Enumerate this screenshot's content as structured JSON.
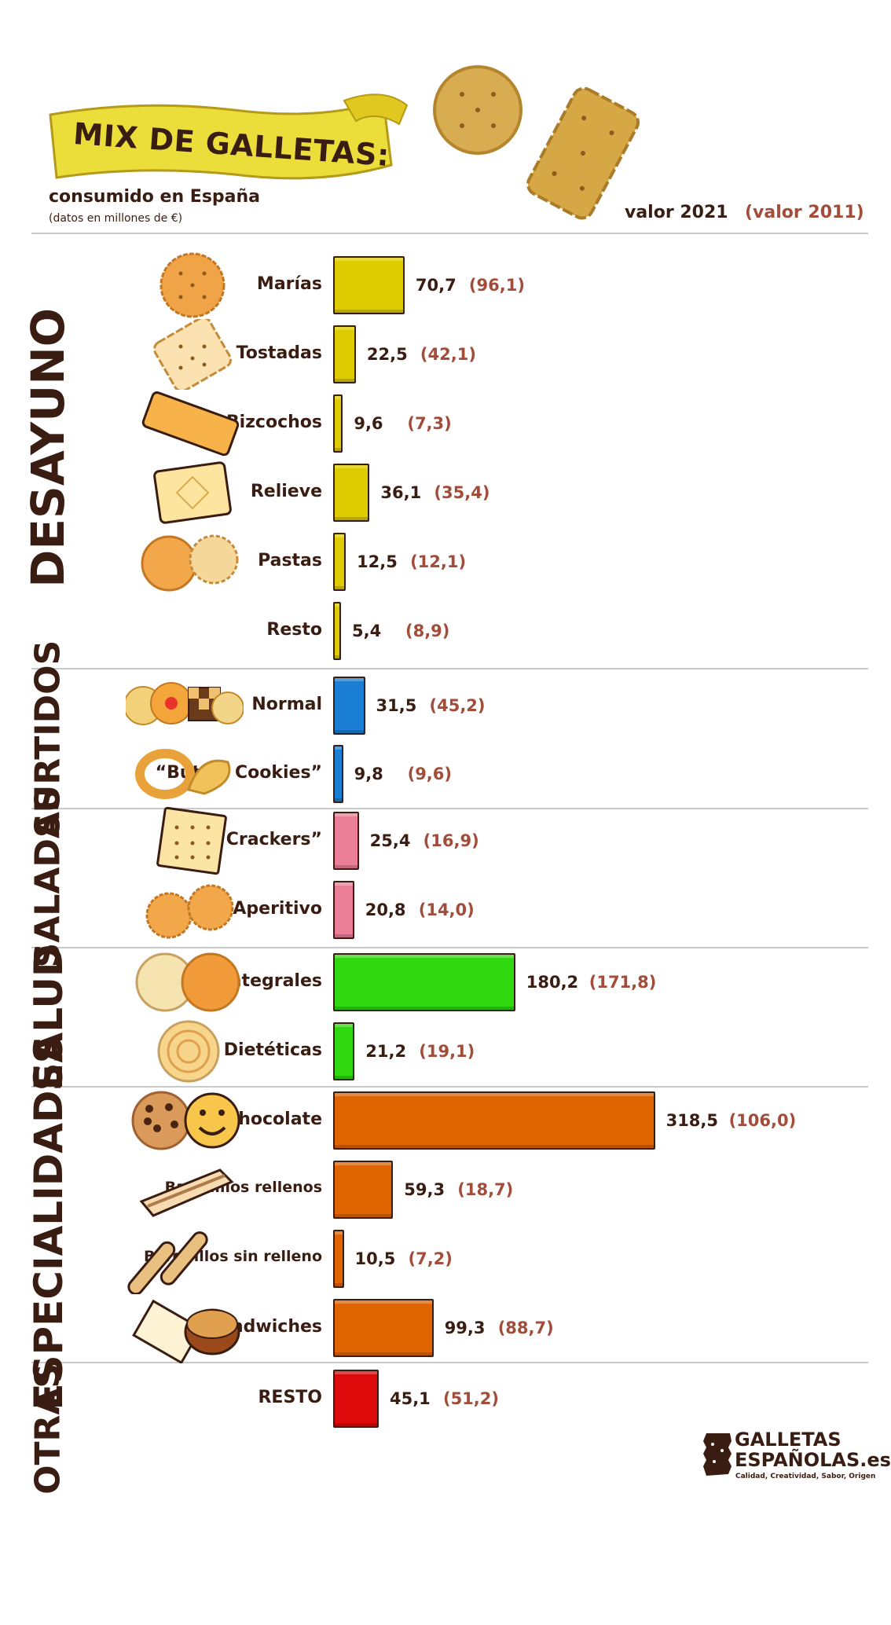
{
  "header": {
    "title": "MIX DE GALLETAS:",
    "subtitle": "consumido en España",
    "note": "(datos en millones de €)",
    "col_2021": "valor 2021",
    "col_2011": "(valor 2011)"
  },
  "colors": {
    "DESAYUNO": "#ddcc00",
    "SURTIDOS": "#1a7fd4",
    "SALADAS": "#ec7f98",
    "SALUD": "#30d810",
    "ESPECIALIDADES": "#e06400",
    "OTRAS": "#dc0a0a",
    "text": "#3a1d12",
    "prev": "#a24c3a"
  },
  "chart_data": {
    "type": "bar",
    "orientation": "horizontal",
    "title": "MIX DE GALLETAS:",
    "subtitle": "consumido en España",
    "note": "(datos en millones de €)",
    "series": [
      {
        "name": "valor 2021"
      },
      {
        "name": "(valor 2011)"
      }
    ],
    "groups": [
      {
        "name": "DESAYUNO",
        "rows": [
          {
            "label": "Marías",
            "v2021": 70.7,
            "t2021": "70,7",
            "v2011": 96.1,
            "t2011": "(96,1)",
            "icon": "round-biscuit-icon"
          },
          {
            "label": "Tostadas",
            "v2021": 22.5,
            "t2021": "22,5",
            "v2011": 42.1,
            "t2011": "(42,1)",
            "icon": "toast-biscuit-icon"
          },
          {
            "label": "Bizcochos",
            "v2021": 9.6,
            "t2021": "9,6",
            "v2011": 7.3,
            "t2011": "(7,3)",
            "icon": "sponge-finger-icon"
          },
          {
            "label": "Relieve",
            "v2021": 36.1,
            "t2021": "36,1",
            "v2011": 35.4,
            "t2011": "(35,4)",
            "icon": "embossed-biscuit-icon"
          },
          {
            "label": "Pastas",
            "v2021": 12.5,
            "t2021": "12,5",
            "v2011": 12.1,
            "t2011": "(12,1)",
            "icon": "pastry-cookies-icon"
          },
          {
            "label": "Resto",
            "v2021": 5.4,
            "t2021": "5,4",
            "v2011": 8.9,
            "t2011": "(8,9)",
            "icon": ""
          }
        ]
      },
      {
        "name": "SURTIDOS",
        "rows": [
          {
            "label": "Normal",
            "v2021": 31.5,
            "t2021": "31,5",
            "v2011": 45.2,
            "t2011": "(45,2)",
            "icon": "assorted-cookies-icon"
          },
          {
            "label": "“Butter Cookies”",
            "v2021": 9.8,
            "t2021": "9,8",
            "v2011": 9.6,
            "t2011": "(9,6)",
            "icon": "butter-cookies-icon"
          }
        ]
      },
      {
        "name": "SALADAS",
        "rows": [
          {
            "label": "“Crackers”",
            "v2021": 25.4,
            "t2021": "25,4",
            "v2011": 16.9,
            "t2011": "(16,9)",
            "icon": "cracker-icon"
          },
          {
            "label": "Aperitivo",
            "v2021": 20.8,
            "t2021": "20,8",
            "v2011": 14.0,
            "t2011": "(14,0)",
            "icon": "snack-crackers-icon"
          }
        ]
      },
      {
        "name": "SALUD",
        "rows": [
          {
            "label": "Integrales",
            "v2021": 180.2,
            "t2021": "180,2",
            "v2011": 171.8,
            "t2011": "(171,8)",
            "icon": "digestive-biscuit-icon"
          },
          {
            "label": "Dietéticas",
            "v2021": 21.2,
            "t2021": "21,2",
            "v2011": 19.1,
            "t2011": "(19,1)",
            "icon": "diet-biscuit-icon"
          }
        ]
      },
      {
        "name": "ESPECIALIDADES",
        "rows": [
          {
            "label": "Con Chocolate",
            "v2021": 318.5,
            "t2021": "318,5",
            "v2011": 106.0,
            "t2011": "(106,0)",
            "icon": "chocolate-chip-cookie-icon"
          },
          {
            "label": "Barquillos rellenos",
            "v2021": 59.3,
            "t2021": "59,3",
            "v2011": 18.7,
            "t2011": "(18,7)",
            "icon": "wafer-icon"
          },
          {
            "label": "Barquillos sin relleno",
            "v2021": 10.5,
            "t2021": "10,5",
            "v2011": 7.2,
            "t2011": "(7,2)",
            "icon": "rolled-wafer-icon"
          },
          {
            "label": "Sándwiches",
            "v2021": 99.3,
            "t2021": "99,3",
            "v2011": 88.7,
            "t2011": "(88,7)",
            "icon": "sandwich-cookie-icon"
          }
        ]
      },
      {
        "name": "OTRAS",
        "rows": [
          {
            "label": "RESTO",
            "v2021": 45.1,
            "t2021": "45,1",
            "v2011": 51.2,
            "t2011": "(51,2)",
            "icon": ""
          }
        ]
      }
    ]
  },
  "logo": {
    "line1": "GALLETAS",
    "line2": "ESPAÑOLAS.es",
    "tagline": "Calidad, Creatividad, Sabor, Origen"
  }
}
